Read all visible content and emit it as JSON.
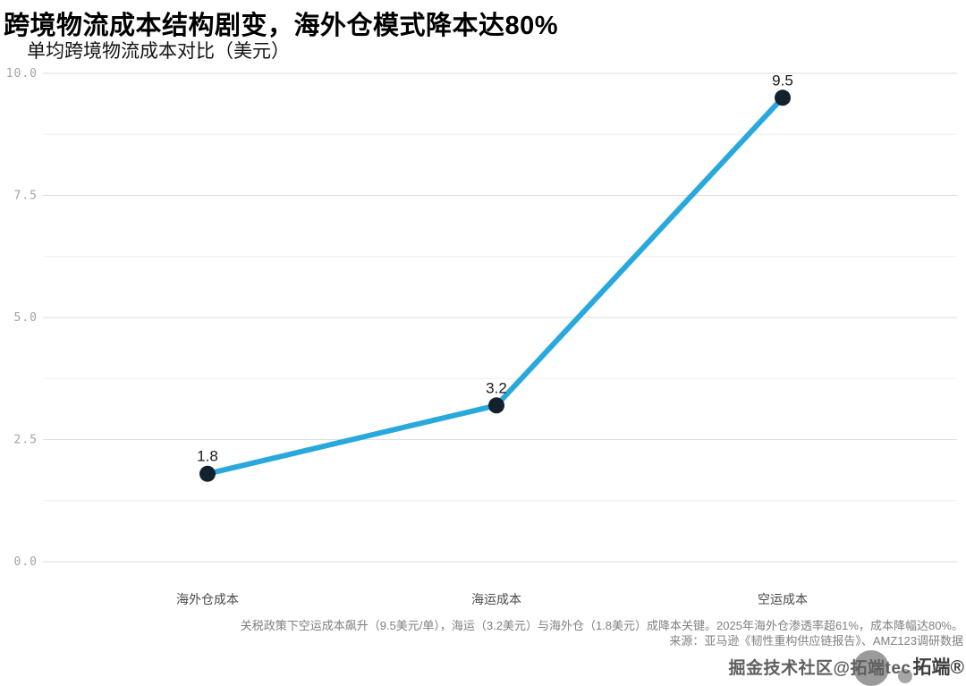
{
  "header": {
    "title": "跨境物流成本结构剧变，海外仓模式降本达80%",
    "subtitle": "单均跨境物流成本对比（美元）"
  },
  "chart_data": {
    "type": "line",
    "title": "单均跨境物流成本对比（美元）",
    "categories": [
      "海外仓成本",
      "海运成本",
      "空运成本"
    ],
    "values": [
      1.8,
      3.2,
      9.5
    ],
    "data_labels": [
      "1.8",
      "3.2",
      "9.5"
    ],
    "xlabel": "",
    "ylabel": "",
    "ylim": [
      0,
      10
    ],
    "yticks": [
      0,
      2.5,
      5,
      7.5,
      10
    ],
    "ytick_labels": [
      "0.0",
      "2.5",
      "5.0",
      "7.5",
      "10.0"
    ],
    "minor_gridlines": [
      1.25,
      3.75,
      6.25,
      8.75
    ],
    "grid": true,
    "legend": false
  },
  "colors": {
    "line": "#29a8dd",
    "marker": "#13202d",
    "grid_major": "#dedede",
    "grid_minor": "#efefef",
    "ytick_label": "#a3a3a3",
    "xtick_label": "#4a4a4a",
    "data_label": "#1a1a1a"
  },
  "footnotes": {
    "line1": "关税政策下空运成本飙升（9.5美元/单），海运（3.2美元）与海外仓（1.8美元）成降本关键。2025年海外仓渗透率超61%，成本降幅达80%。",
    "line2": "来源：亚马逊《韧性重构供应链报告》、AMZ123调研数据"
  },
  "watermark": {
    "text1": "掘金技术社区@拓端tec",
    "text2": "拓端®"
  }
}
